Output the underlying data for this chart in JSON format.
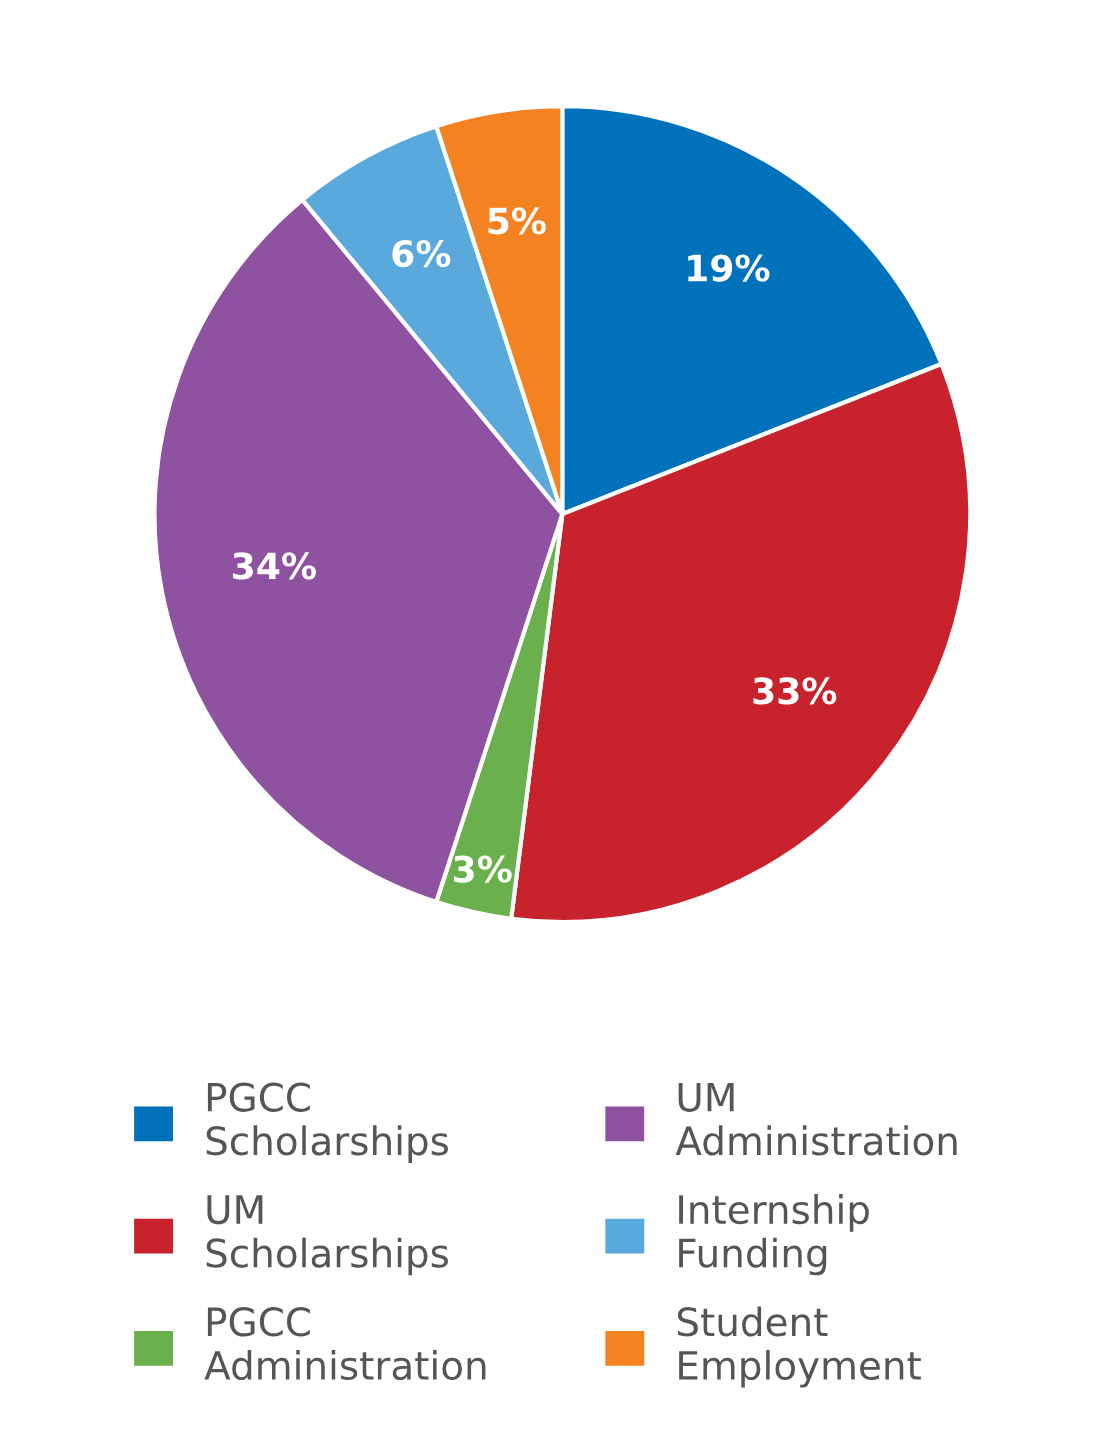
{
  "chart_data": {
    "type": "pie",
    "categories": [
      "PGCC Scholarships",
      "UM Scholarships",
      "PGCC Administration",
      "UM Administration",
      "Internship Funding",
      "Student Employment"
    ],
    "values": [
      19,
      33,
      3,
      34,
      6,
      5
    ],
    "value_labels": [
      "19%",
      "33%",
      "3%",
      "34%",
      "6%",
      "5%"
    ],
    "colors": [
      "#0072bc",
      "#c8232c",
      "#6ab04c",
      "#8e52a1",
      "#5aa9dc",
      "#f58220"
    ],
    "legend": "bottom"
  }
}
